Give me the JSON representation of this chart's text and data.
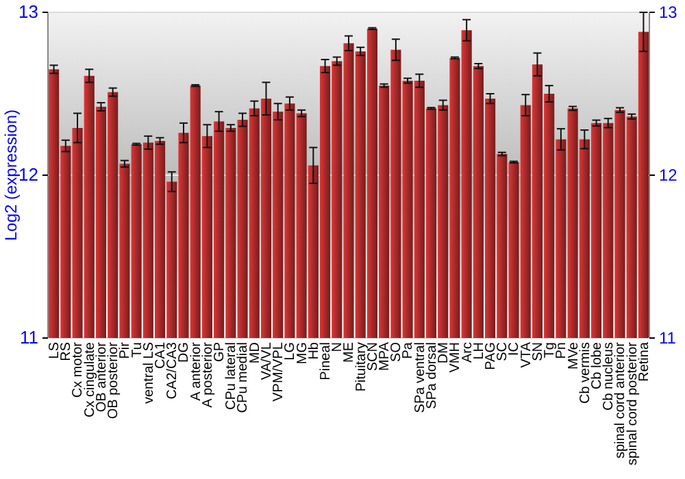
{
  "chart_data": {
    "type": "bar",
    "ylabel": "Log2 (expression)",
    "categories": [
      "LS",
      "RS",
      "Cx motor",
      "Cx cingulate",
      "OB anterior",
      "OB posterior",
      "Pir",
      "Tu",
      "ventral LS",
      "CA1",
      "CA2/CA3",
      "DG",
      "A anterior",
      "A posterior",
      "GP",
      "CPu lateral",
      "CPu medial",
      "MD",
      "VA/VL",
      "VPM/VPL",
      "LG",
      "MG",
      "Hb",
      "Pineal",
      "N",
      "ME",
      "Pituitary",
      "SCN",
      "MPA",
      "SO",
      "Pa",
      "SPa ventral",
      "SPa dorsal",
      "DM",
      "VMH",
      "Arc",
      "LH",
      "PAG",
      "SC",
      "IC",
      "VTA",
      "SN",
      "Tg",
      "Pn",
      "MVe",
      "Cb vermis",
      "Cb lobe",
      "Cb nucleus",
      "spinal cord anterior",
      "spinal cord posterior",
      "Retina"
    ],
    "values": [
      12.65,
      12.18,
      12.29,
      12.61,
      12.42,
      12.51,
      12.07,
      12.19,
      12.2,
      12.21,
      11.96,
      12.26,
      12.55,
      12.24,
      12.33,
      12.29,
      12.34,
      12.41,
      12.47,
      12.39,
      12.44,
      12.38,
      12.06,
      12.67,
      12.7,
      12.81,
      12.76,
      12.9,
      12.55,
      12.77,
      12.58,
      12.58,
      12.41,
      12.43,
      12.72,
      12.89,
      12.67,
      12.47,
      12.13,
      12.08,
      12.43,
      12.68,
      12.5,
      12.22,
      12.41,
      12.22,
      12.32,
      12.32,
      12.4,
      12.36,
      12.88
    ],
    "errors": [
      0.025,
      0.035,
      0.09,
      0.04,
      0.025,
      0.025,
      0.02,
      0.005,
      0.04,
      0.02,
      0.06,
      0.06,
      0.005,
      0.07,
      0.06,
      0.02,
      0.04,
      0.045,
      0.1,
      0.05,
      0.04,
      0.02,
      0.11,
      0.04,
      0.025,
      0.045,
      0.025,
      0.005,
      0.01,
      0.065,
      0.015,
      0.04,
      0.005,
      0.03,
      0.005,
      0.065,
      0.015,
      0.03,
      0.01,
      0.005,
      0.065,
      0.07,
      0.05,
      0.065,
      0.012,
      0.057,
      0.018,
      0.028,
      0.014,
      0.015,
      0.12
    ],
    "color": "#b22c2c",
    "ylim": [
      11,
      13
    ],
    "yticks": [
      11,
      12,
      13
    ],
    "y2lim": [
      11,
      13
    ],
    "y2ticks": [
      11,
      12,
      13
    ],
    "grid": "y"
  }
}
